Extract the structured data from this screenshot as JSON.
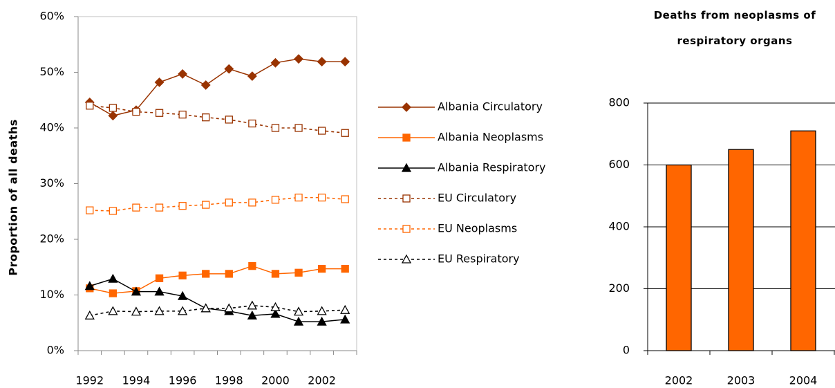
{
  "chart_data": [
    {
      "type": "line",
      "y_label": "Proportion of all deaths",
      "categories": [
        "1992",
        null,
        "1994",
        null,
        "1996",
        null,
        "1998",
        null,
        "2000",
        null,
        "2002",
        null
      ],
      "ylim": [
        0,
        60
      ],
      "yticks": [
        {
          "value": 0,
          "label": "0%"
        },
        {
          "value": 10,
          "label": "10%"
        },
        {
          "value": 20,
          "label": "20%"
        },
        {
          "value": 30,
          "label": "30%"
        },
        {
          "value": 40,
          "label": "40%"
        },
        {
          "value": 50,
          "label": "50%"
        },
        {
          "value": 60,
          "label": "60%"
        }
      ],
      "legend": "right",
      "series": [
        {
          "name": "Albania Circulatory",
          "color": "#993300",
          "marker": "diamond",
          "filled": true,
          "dashed": false,
          "values": [
            44.6,
            42.2,
            43.2,
            48.2,
            49.7,
            47.7,
            50.6,
            49.3,
            51.7,
            52.4,
            51.9,
            51.9
          ]
        },
        {
          "name": "Albania Neoplasms",
          "color": "#ff6600",
          "marker": "square",
          "filled": true,
          "dashed": false,
          "values": [
            11.2,
            10.3,
            10.7,
            13.0,
            13.5,
            13.8,
            13.8,
            15.2,
            13.8,
            14.0,
            14.7,
            14.7
          ]
        },
        {
          "name": "Albania Respiratory",
          "color": "#000000",
          "marker": "triangle",
          "filled": true,
          "dashed": false,
          "values": [
            11.6,
            12.9,
            10.6,
            10.6,
            9.8,
            7.6,
            7.1,
            6.3,
            6.6,
            5.2,
            5.2,
            5.6
          ]
        },
        {
          "name": "EU Circulatory",
          "color": "#993300",
          "marker": "square",
          "filled": false,
          "dashed": true,
          "values": [
            44.0,
            43.6,
            42.9,
            42.7,
            42.4,
            41.9,
            41.5,
            40.8,
            40.0,
            40.0,
            39.5,
            39.1
          ]
        },
        {
          "name": "EU Neoplasms",
          "color": "#ff6600",
          "marker": "square",
          "filled": false,
          "dashed": true,
          "values": [
            25.2,
            25.1,
            25.7,
            25.7,
            26.0,
            26.2,
            26.6,
            26.6,
            27.1,
            27.5,
            27.5,
            27.2
          ]
        },
        {
          "name": "EU Respiratory",
          "color": "#000000",
          "marker": "triangle",
          "filled": false,
          "dashed": true,
          "values": [
            6.3,
            7.1,
            7.0,
            7.1,
            7.1,
            7.6,
            7.6,
            8.1,
            7.8,
            7.0,
            7.1,
            7.3
          ]
        }
      ]
    },
    {
      "type": "bar",
      "title": "Deaths from neoplasms of respiratory organs",
      "categories": [
        "2002",
        "2003",
        "2004"
      ],
      "values": [
        600,
        650,
        710
      ],
      "color": "#ff6600",
      "ylim": [
        0,
        800
      ],
      "yticks": [
        0,
        200,
        400,
        600,
        800
      ],
      "grid": true
    }
  ]
}
